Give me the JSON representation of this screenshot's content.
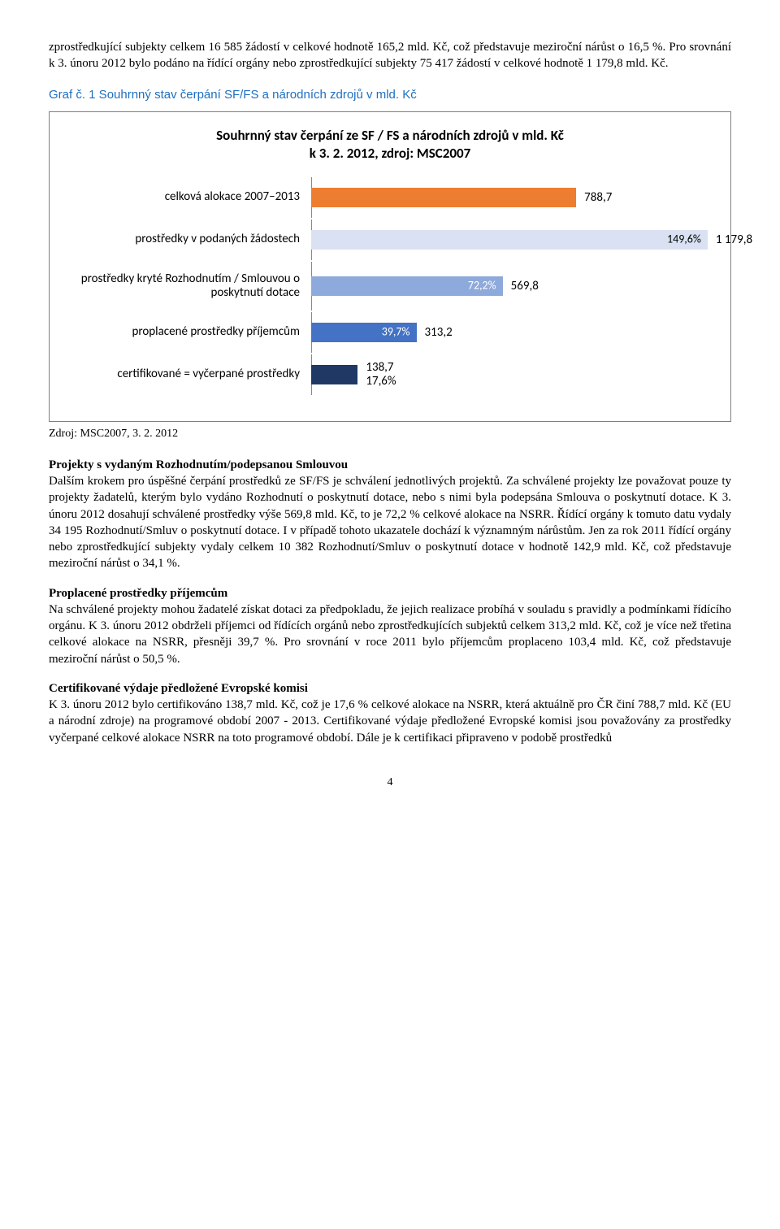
{
  "intro_paragraph": "zprostředkující subjekty celkem 16 585 žádostí v celkové hodnotě 165,2 mld. Kč, což představuje meziroční nárůst o 16,5 %. Pro srovnání k 3. únoru 2012 bylo podáno na řídící orgány nebo zprostředkující subjekty 75 417 žádostí v celkové hodnotě 1 179,8 mld. Kč.",
  "heading": "Graf č. 1 Souhrnný stav čerpání SF/FS a národních zdrojů v mld. Kč",
  "chart": {
    "title_line1": "Souhrnný stav čerpání ze SF / FS a národních zdrojů v mld. Kč",
    "title_line2": "k 3. 2. 2012, zdroj: MSC2007",
    "max": 1180,
    "rows": [
      {
        "label": "celková alokace 2007–2013",
        "value": 788.7,
        "value_text": "788,7",
        "pct_text": "",
        "pct_inside": false,
        "color": "#ed7d31",
        "tall": false
      },
      {
        "label": "prostředky v podaných žádostech",
        "value": 1179.8,
        "value_text": "1 179,8",
        "pct_text": "149,6%",
        "pct_inside": true,
        "pct_color": "dark",
        "color": "#d9e1f2",
        "tall": false
      },
      {
        "label": "prostředky kryté Rozhodnutím / Smlouvou o poskytnutí dotace",
        "value": 569.8,
        "value_text": "569,8",
        "pct_text": "72,2%",
        "pct_inside": true,
        "pct_color": "",
        "color": "#8ea9db",
        "tall": true
      },
      {
        "label": "proplacené prostředky příjemcům",
        "value": 313.2,
        "value_text": "313,2",
        "pct_text": "39,7%",
        "pct_inside": true,
        "pct_color": "",
        "color": "#4472c4",
        "tall": false
      },
      {
        "label": "certifikované = vyčerpané prostředky",
        "value": 138.7,
        "value_text": "138,7",
        "pct_text": "17,6%",
        "pct_inside": false,
        "pct_color": "",
        "color": "#1f3864",
        "tall": false,
        "last": true
      }
    ]
  },
  "source": "Zdroj: MSC2007, 3. 2. 2012",
  "sections": [
    {
      "title": "Projekty s vydaným Rozhodnutím/podepsanou Smlouvou",
      "text": "Dalším krokem pro úspěšné čerpání prostředků ze SF/FS je schválení jednotlivých projektů. Za schválené projekty lze považovat pouze ty projekty žadatelů, kterým bylo vydáno Rozhodnutí o poskytnutí dotace, nebo s nimi byla podepsána Smlouva o poskytnutí dotace. K 3. únoru 2012 dosahují schválené prostředky výše 569,8 mld. Kč, to je 72,2 % celkové alokace na NSRR. Řídící orgány k tomuto datu vydaly 34 195 Rozhodnutí/Smluv o poskytnutí dotace. I v případě tohoto ukazatele dochází k významným nárůstům. Jen za rok 2011 řídící orgány nebo zprostředkující subjekty vydaly celkem 10 382 Rozhodnutí/Smluv o poskytnutí dotace v hodnotě 142,9 mld. Kč, což představuje meziroční nárůst o 34,1 %."
    },
    {
      "title": "Proplacené prostředky příjemcům",
      "text": "Na schválené projekty mohou žadatelé získat dotaci za předpokladu, že jejich realizace probíhá v souladu s pravidly a podmínkami řídícího orgánu. K 3. únoru 2012 obdrželi příjemci od řídících orgánů nebo zprostředkujících subjektů celkem 313,2 mld. Kč, což je více než třetina celkové alokace na NSRR, přesněji 39,7 %. Pro srovnání v roce 2011 bylo příjemcům proplaceno 103,4 mld. Kč, což představuje meziroční nárůst o 50,5 %."
    },
    {
      "title": "Certifikované výdaje předložené Evropské komisi",
      "text": "K 3. únoru 2012 bylo certifikováno 138,7 mld. Kč, což je 17,6 % celkové alokace na NSRR, která aktuálně pro ČR činí 788,7 mld. Kč (EU a národní zdroje) na programové období 2007 - 2013. Certifikované výdaje předložené Evropské komisi jsou považovány za prostředky vyčerpané celkové alokace NSRR na toto programové období. Dále je k certifikaci připraveno v podobě prostředků"
    }
  ],
  "page_number": "4"
}
